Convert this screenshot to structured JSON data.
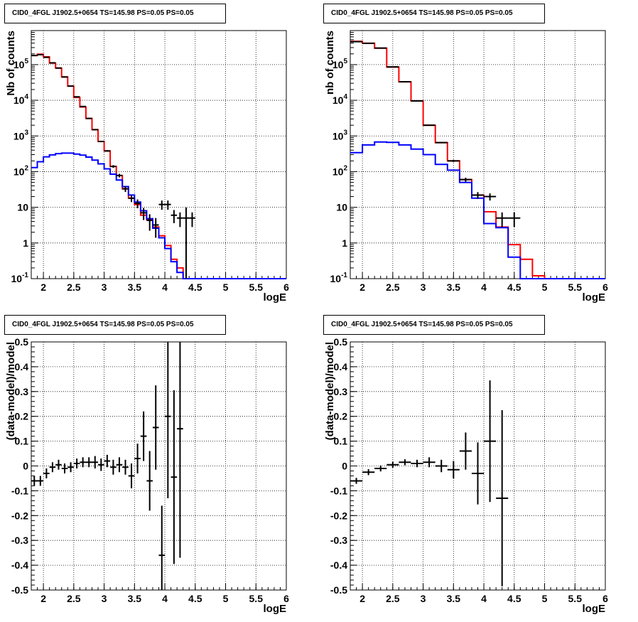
{
  "panels": [
    {
      "title": "CID0_4FGL J1902.5+0654 TS=145.98 PS=0.05 PS=0.05",
      "chart_data": {
        "type": "histogram",
        "xlabel": "logE",
        "ylabel": "Nb of counts",
        "xlim": [
          1.8,
          6.0
        ],
        "ylim": [
          0.1,
          900000
        ],
        "log_y": true,
        "grid": true,
        "x_ticks": [
          "2",
          "2.5",
          "3",
          "3.5",
          "4",
          "4.5",
          "5",
          "5.5",
          "6"
        ],
        "y_ticks": [
          "10^-1",
          "1",
          "10",
          "10^2",
          "10^3",
          "10^4",
          "10^5"
        ],
        "bin_edges": [
          1.8,
          1.9,
          2.0,
          2.1,
          2.2,
          2.3,
          2.4,
          2.5,
          2.6,
          2.7,
          2.8,
          2.9,
          3.0,
          3.1,
          3.2,
          3.3,
          3.4,
          3.5,
          3.6,
          3.7,
          3.8,
          3.9,
          4.0,
          4.1,
          4.2,
          4.3,
          4.4,
          4.5,
          4.6,
          4.7,
          4.8,
          4.9,
          5.0,
          5.1,
          5.2,
          5.3,
          5.4,
          5.5,
          5.6,
          5.7,
          5.8,
          5.9,
          6.0
        ],
        "series": [
          {
            "color": "#ff0000",
            "style": "step",
            "values": [
              180000,
              195000,
              165000,
              110000,
              80000,
              45000,
              25000,
              12000,
              6500,
              3100,
              1500,
              700,
              380,
              140,
              78,
              33,
              18,
              12,
              6,
              4.5,
              2.8,
              1.6,
              0.85,
              0.35,
              0.2,
              0.1,
              0.1,
              0.1,
              0.1,
              0.1,
              0.1,
              0.1,
              0.1,
              0.1,
              0.1,
              0.1,
              0.1,
              0.1,
              0.1,
              0.1,
              0.1,
              0.1
            ]
          },
          {
            "color": "#0000ff",
            "style": "step",
            "values": [
              130,
              190,
              260,
              295,
              320,
              330,
              330,
              310,
              290,
              255,
              210,
              165,
              120,
              85,
              58,
              38,
              22,
              14,
              8,
              4.8,
              2.6,
              1.4,
              0.7,
              0.3,
              0.15,
              0.1,
              0.1,
              0.1,
              0.1,
              0.1,
              0.1,
              0.1,
              0.1,
              0.1,
              0.1,
              0.1,
              0.1,
              0.1,
              0.1,
              0.1,
              0.1,
              0.1
            ]
          },
          {
            "color": "#000000",
            "style": "points",
            "x": [
              1.85,
              1.95,
              2.05,
              2.15,
              2.25,
              2.35,
              2.45,
              2.55,
              2.65,
              2.75,
              2.85,
              2.95,
              3.05,
              3.15,
              3.25,
              3.35,
              3.45,
              3.55,
              3.65,
              3.75,
              3.85,
              3.95,
              4.05,
              4.15,
              4.25,
              4.35,
              4.45
            ],
            "y": [
              180000,
              190000,
              160000,
              112000,
              80000,
              45000,
              25000,
              12500,
              6700,
              3100,
              1500,
              700,
              380,
              140,
              78,
              33,
              18,
              13,
              7,
              4.3,
              3.2,
              12,
              12,
              6,
              5,
              5,
              5
            ],
            "yerr": [
              420,
              440,
              400,
              335,
              283,
              212,
              158,
              112,
              82,
              56,
              39,
              26,
              19,
              12,
              9,
              6,
              4,
              3.6,
              2.6,
              2.1,
              1.8,
              3.5,
              3.5,
              2.4,
              2.2,
              4.9,
              2.2
            ]
          }
        ]
      }
    },
    {
      "title": "CID0_4FGL J1902.5+0654 TS=145.98 PS=0.05 PS=0.05",
      "chart_data": {
        "type": "histogram",
        "xlabel": "logE",
        "ylabel": "nb of counts",
        "xlim": [
          1.8,
          6.0
        ],
        "ylim": [
          0.1,
          900000
        ],
        "log_y": true,
        "grid": true,
        "x_ticks": [
          "2",
          "2.5",
          "3",
          "3.5",
          "4",
          "4.5",
          "5",
          "5.5",
          "6"
        ],
        "y_ticks": [
          "10^-1",
          "1",
          "10",
          "10^2",
          "10^3",
          "10^4",
          "10^5"
        ],
        "bin_edges": [
          1.8,
          2.0,
          2.2,
          2.4,
          2.6,
          2.8,
          3.0,
          3.2,
          3.4,
          3.6,
          3.8,
          4.0,
          4.2,
          4.4,
          4.6,
          4.8,
          5.0,
          5.2,
          5.4,
          5.6,
          5.8,
          6.0
        ],
        "series": [
          {
            "color": "#ff0000",
            "style": "step",
            "values": [
              450000,
              400000,
              290000,
              85000,
              33000,
              9600,
              2000,
              650,
              200,
              60,
              22,
              7.5,
              2.8,
              0.9,
              0.35,
              0.12,
              0.1,
              0.1,
              0.1,
              0.1,
              0.1
            ]
          },
          {
            "color": "#0000ff",
            "style": "step",
            "values": [
              340,
              560,
              680,
              660,
              560,
              430,
              300,
              160,
              110,
              50,
              18,
              3.5,
              2.7,
              0.4,
              0.1,
              0.1,
              0.1,
              0.1,
              0.1,
              0.1,
              0.1
            ]
          },
          {
            "color": "#000000",
            "style": "points",
            "x": [
              1.9,
              2.1,
              2.3,
              2.5,
              2.7,
              2.9,
              3.1,
              3.3,
              3.5,
              3.7,
              3.9,
              4.1,
              4.3,
              4.5
            ],
            "y": [
              440000,
              395000,
              290000,
              86000,
              33000,
              9600,
              2000,
              650,
              200,
              60,
              22,
              20,
              5,
              5
            ],
            "yerr": [
              660,
              630,
              540,
              293,
              182,
              98,
              45,
              25,
              14,
              7.7,
              4.7,
              4.5,
              2.2,
              2.2
            ]
          }
        ]
      }
    },
    {
      "title": "CID0_4FGL J1902.5+0654 TS=145.98 PS=0.05 PS=0.05",
      "chart_data": {
        "type": "scatter",
        "xlabel": "logE",
        "ylabel": "(data-model)/model",
        "xlim": [
          1.8,
          6.0
        ],
        "ylim": [
          -0.5,
          0.5
        ],
        "grid": true,
        "x_ticks": [
          "2",
          "2.5",
          "3",
          "3.5",
          "4",
          "4.5",
          "5",
          "5.5",
          "6"
        ],
        "y_ticks": [
          "-0.5",
          "-0.4",
          "-0.3",
          "-0.2",
          "-0.1",
          "0",
          "0.1",
          "0.2",
          "0.3",
          "0.4",
          "0.5"
        ],
        "series": [
          {
            "color": "#000000",
            "style": "points",
            "xerr": 0.05,
            "x": [
              1.85,
              1.95,
              2.05,
              2.15,
              2.25,
              2.35,
              2.45,
              2.55,
              2.65,
              2.75,
              2.85,
              2.95,
              3.05,
              3.15,
              3.25,
              3.35,
              3.45,
              3.55,
              3.65,
              3.75,
              3.85,
              3.95,
              4.05,
              4.15,
              4.25
            ],
            "y": [
              -0.06,
              -0.06,
              -0.03,
              -0.005,
              0.005,
              -0.01,
              -0.005,
              0.01,
              0.015,
              0.015,
              0.015,
              0.005,
              0.02,
              -0.005,
              0.005,
              -0.005,
              -0.04,
              0.03,
              0.12,
              -0.06,
              0.155,
              -0.36,
              0.2,
              -0.045,
              0.15
            ],
            "yerr": [
              0.02,
              0.02,
              0.02,
              0.02,
              0.02,
              0.02,
              0.02,
              0.02,
              0.02,
              0.02,
              0.025,
              0.025,
              0.025,
              0.03,
              0.03,
              0.03,
              0.05,
              0.06,
              0.1,
              0.12,
              0.17,
              0.2,
              0.33,
              0.35,
              0.52
            ]
          }
        ]
      }
    },
    {
      "title": "CID0_4FGL J1902.5+0654 TS=145.98 PS=0.05 PS=0.05",
      "chart_data": {
        "type": "scatter",
        "xlabel": "logE",
        "ylabel": "(data-model)/model",
        "xlim": [
          1.8,
          6.0
        ],
        "ylim": [
          -0.5,
          0.5
        ],
        "grid": true,
        "x_ticks": [
          "2",
          "2.5",
          "3",
          "3.5",
          "4",
          "4.5",
          "5",
          "5.5",
          "6"
        ],
        "y_ticks": [
          "-0.5",
          "-0.4",
          "-0.3",
          "-0.2",
          "-0.1",
          "0",
          "0.1",
          "0.2",
          "0.3",
          "0.4",
          "0.5"
        ],
        "series": [
          {
            "color": "#000000",
            "style": "points",
            "xerr": 0.1,
            "x": [
              1.9,
              2.1,
              2.3,
              2.5,
              2.7,
              2.9,
              3.1,
              3.3,
              3.5,
              3.7,
              3.9,
              4.1,
              4.3
            ],
            "y": [
              -0.06,
              -0.025,
              -0.01,
              0.005,
              0.015,
              0.01,
              0.015,
              0.0,
              -0.015,
              0.06,
              -0.03,
              0.1,
              -0.13
            ],
            "yerr": [
              0.012,
              0.012,
              0.012,
              0.012,
              0.012,
              0.015,
              0.02,
              0.025,
              0.035,
              0.075,
              0.125,
              0.245,
              0.355
            ]
          }
        ]
      }
    }
  ]
}
